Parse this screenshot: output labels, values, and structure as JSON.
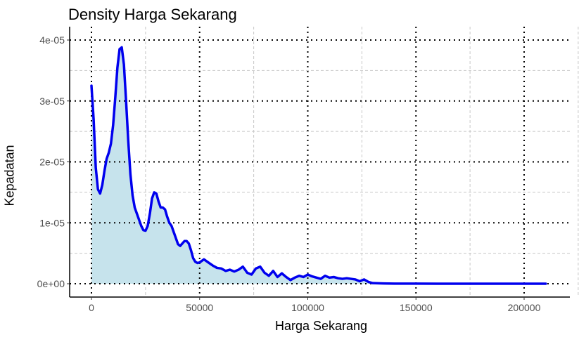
{
  "chart_data": {
    "type": "area",
    "title": "Density Harga Sekarang",
    "xlabel": "Harga Sekarang",
    "ylabel": "Kepadatan",
    "xlim": [
      -10000,
      220000
    ],
    "ylim": [
      -2e-06,
      4.3e-05
    ],
    "x_ticks": [
      0,
      50000,
      100000,
      150000,
      200000
    ],
    "x_tick_labels": [
      "0",
      "50000",
      "100000",
      "150000",
      "200000"
    ],
    "y_ticks": [
      0,
      1e-05,
      2e-05,
      3e-05,
      4e-05
    ],
    "y_tick_labels": [
      "0e+00",
      "1e-05",
      "2e-05",
      "3e-05",
      "4e-05"
    ],
    "grid": true,
    "colors": {
      "line": "#0000ee",
      "fill": "#c6e3ec"
    },
    "series": [
      {
        "x": [
          0,
          1000,
          2000,
          3000,
          4000,
          5000,
          6000,
          7000,
          8000,
          9000,
          10000,
          11000,
          12000,
          13000,
          14000,
          15000,
          16000,
          17000,
          18000,
          19000,
          20000,
          21000,
          22000,
          23000,
          24000,
          25000,
          26000,
          27000,
          28000,
          29000,
          30000,
          31000,
          32000,
          33000,
          34000,
          35000,
          36000,
          37000,
          38000,
          39000,
          40000,
          41000,
          42000,
          43000,
          44000,
          45000,
          46000,
          47000,
          48000,
          49000,
          50000,
          52000,
          54000,
          56000,
          58000,
          60000,
          62000,
          64000,
          66000,
          68000,
          70000,
          72000,
          74000,
          76000,
          78000,
          80000,
          82000,
          84000,
          86000,
          88000,
          90000,
          92000,
          94000,
          96000,
          98000,
          100000,
          102000,
          104000,
          106000,
          108000,
          110000,
          112000,
          114000,
          116000,
          118000,
          120000,
          122000,
          124000,
          126000,
          128000,
          130000,
          135000,
          140000,
          150000,
          160000,
          170000,
          180000,
          190000,
          200000,
          210000
        ],
        "values": [
          3.25e-05,
          2.7e-05,
          1.9e-05,
          1.55e-05,
          1.48e-05,
          1.62e-05,
          1.85e-05,
          2.05e-05,
          2.15e-05,
          2.3e-05,
          2.6e-05,
          3.05e-05,
          3.55e-05,
          3.85e-05,
          3.88e-05,
          3.6e-05,
          3e-05,
          2.35e-05,
          1.8e-05,
          1.45e-05,
          1.25e-05,
          1.15e-05,
          1.05e-05,
          9.5e-06,
          8.8e-06,
          8.7e-06,
          9.5e-06,
          1.15e-05,
          1.4e-05,
          1.5e-05,
          1.48e-05,
          1.35e-05,
          1.25e-05,
          1.25e-05,
          1.22e-05,
          1.1e-05,
          1e-05,
          9.5e-06,
          8.5e-06,
          7.5e-06,
          6.5e-06,
          6.2e-06,
          6.6e-06,
          7e-06,
          7e-06,
          6.6e-06,
          5.5e-06,
          4.2e-06,
          3.6e-06,
          3.4e-06,
          3.5e-06,
          4e-06,
          3.5e-06,
          3e-06,
          2.6e-06,
          2.5e-06,
          2.1e-06,
          2.3e-06,
          2e-06,
          2.3e-06,
          2.8e-06,
          1.8e-06,
          1.5e-06,
          2.5e-06,
          2.8e-06,
          1.8e-06,
          1.3e-06,
          2.1e-06,
          1.1e-06,
          1.7e-06,
          1.1e-06,
          6e-07,
          1e-06,
          1.3e-06,
          1.1e-06,
          1.5e-06,
          1.2e-06,
          1e-06,
          8e-07,
          1.3e-06,
          1e-06,
          1.1e-06,
          9e-07,
          8e-07,
          9e-07,
          8e-07,
          7e-07,
          4e-07,
          7e-07,
          3e-07,
          1e-07,
          5e-08,
          2e-08,
          1e-08,
          5e-09,
          3e-09,
          1e-09,
          8e-10,
          6e-10,
          5e-10
        ]
      }
    ]
  }
}
